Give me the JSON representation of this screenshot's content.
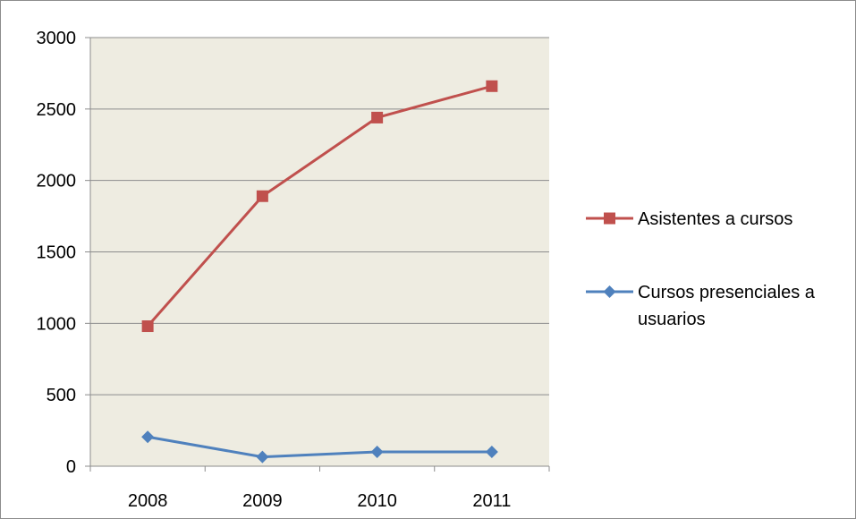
{
  "chart_data": {
    "type": "line",
    "categories": [
      "2008",
      "2009",
      "2010",
      "2011"
    ],
    "ylim": [
      0,
      3000
    ],
    "yticks": [
      "0",
      "500",
      "1000",
      "1500",
      "2000",
      "2500",
      "3000"
    ],
    "grid": true,
    "legend_position": "right",
    "plot_background": "#eeece1",
    "series": [
      {
        "name_lines": [
          "Asistentes a cursos"
        ],
        "marker": "square",
        "color": "#c0504d",
        "values": [
          980,
          1890,
          2440,
          2660
        ]
      },
      {
        "name_lines": [
          "Cursos presenciales a",
          "usuarios"
        ],
        "marker": "diamond",
        "color": "#4f81bd",
        "values": [
          205,
          65,
          100,
          100
        ]
      }
    ]
  }
}
